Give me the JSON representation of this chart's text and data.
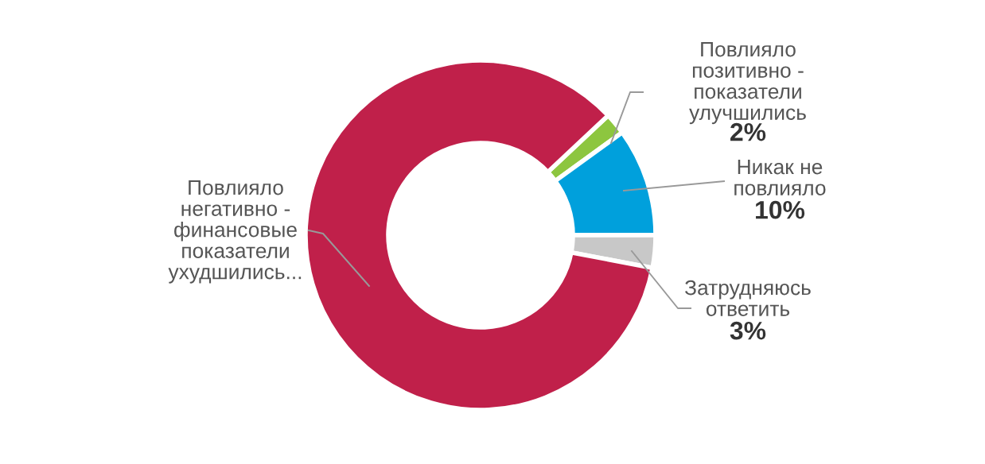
{
  "chart_data": {
    "type": "donut",
    "categories": [
      "Повлияло\nпозитивно -\nпоказатели\nулучшились",
      "Никак не\nповлияло",
      "Затрудняюсь\nответить",
      "Повлияло\nнегативно -\nфинансовые\nпоказатели\nухудшились..."
    ],
    "values": [
      2,
      10,
      3,
      85
    ],
    "value_labels": [
      "2%",
      "10%",
      "3%",
      null
    ],
    "colors": [
      "#8dc63f",
      "#00a0dc",
      "#c8c8c8",
      "#c0204a"
    ],
    "legend": false
  }
}
